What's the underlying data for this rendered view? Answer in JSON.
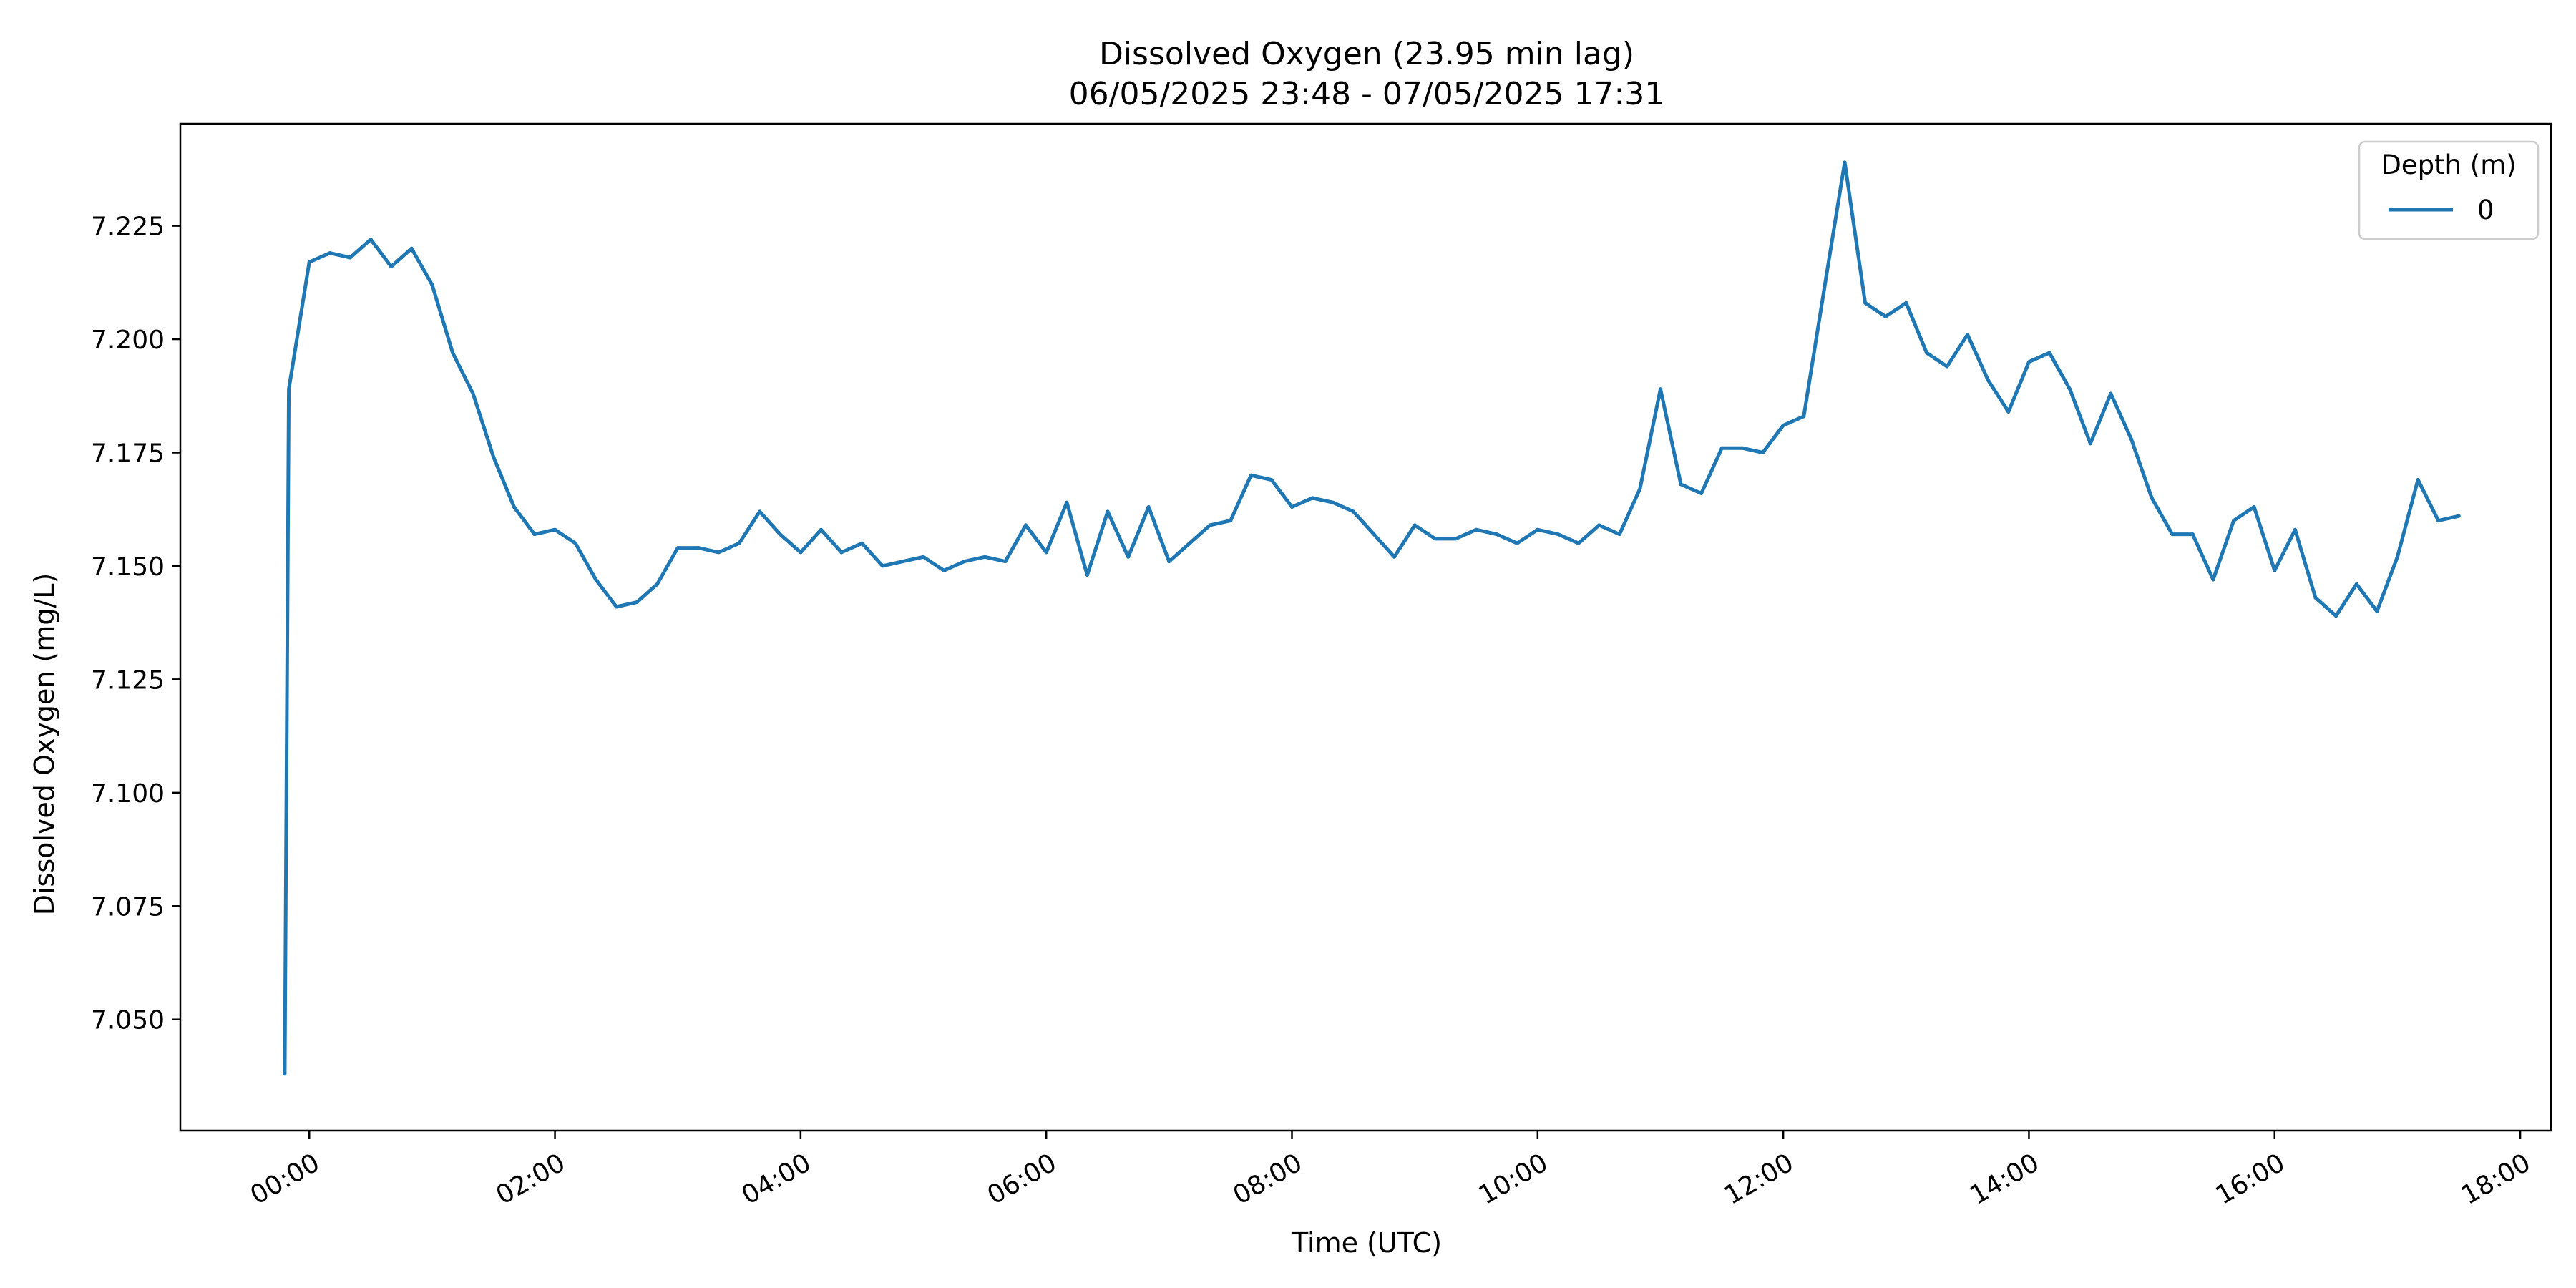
{
  "chart_data": {
    "type": "line",
    "title": "Dissolved Oxygen (23.95 min lag)",
    "subtitle": "06/05/2025 23:48 - 07/05/2025 17:31",
    "xlabel": "Time (UTC)",
    "ylabel": "Dissolved Oxygen (mg/L)",
    "x_unit": "hours from 00:00 UTC",
    "xlim": [
      -1.05,
      18.25
    ],
    "ylim": [
      7.0255,
      7.2475
    ],
    "x_ticks": [
      "00:00",
      "02:00",
      "04:00",
      "06:00",
      "08:00",
      "10:00",
      "12:00",
      "14:00",
      "16:00",
      "18:00"
    ],
    "y_ticks": [
      "7.050",
      "7.075",
      "7.100",
      "7.125",
      "7.150",
      "7.175",
      "7.200",
      "7.225"
    ],
    "grid": false,
    "legend": {
      "title": "Depth (m)",
      "position": "top-right"
    },
    "series": [
      {
        "name": "0",
        "color": "#1f77b4",
        "x": [
          -0.2,
          -0.167,
          0.0,
          0.167,
          0.333,
          0.5,
          0.667,
          0.833,
          1.0,
          1.167,
          1.333,
          1.5,
          1.667,
          1.833,
          2.0,
          2.167,
          2.333,
          2.5,
          2.667,
          2.833,
          3.0,
          3.167,
          3.333,
          3.5,
          3.667,
          3.833,
          4.0,
          4.167,
          4.333,
          4.5,
          4.667,
          4.833,
          5.0,
          5.167,
          5.333,
          5.5,
          5.667,
          5.833,
          6.0,
          6.167,
          6.333,
          6.5,
          6.667,
          6.833,
          7.0,
          7.167,
          7.333,
          7.5,
          7.667,
          7.833,
          8.0,
          8.167,
          8.333,
          8.5,
          8.667,
          8.833,
          9.0,
          9.167,
          9.333,
          9.5,
          9.667,
          9.833,
          10.0,
          10.167,
          10.333,
          10.5,
          10.667,
          10.833,
          11.0,
          11.167,
          11.333,
          11.5,
          11.667,
          11.833,
          12.0,
          12.167,
          12.333,
          12.5,
          12.667,
          12.833,
          13.0,
          13.167,
          13.333,
          13.5,
          13.667,
          13.833,
          14.0,
          14.167,
          14.333,
          14.5,
          14.667,
          14.833,
          15.0,
          15.167,
          15.333,
          15.5,
          15.667,
          15.833,
          16.0,
          16.167,
          16.333,
          16.5,
          16.667,
          16.833,
          17.0,
          17.167,
          17.333,
          17.5
        ],
        "values": [
          7.038,
          7.189,
          7.217,
          7.219,
          7.218,
          7.222,
          7.216,
          7.22,
          7.212,
          7.197,
          7.188,
          7.174,
          7.163,
          7.157,
          7.158,
          7.155,
          7.147,
          7.141,
          7.142,
          7.146,
          7.154,
          7.154,
          7.153,
          7.155,
          7.162,
          7.157,
          7.153,
          7.158,
          7.153,
          7.155,
          7.15,
          7.151,
          7.152,
          7.149,
          7.151,
          7.152,
          7.151,
          7.159,
          7.153,
          7.164,
          7.148,
          7.162,
          7.152,
          7.163,
          7.151,
          7.155,
          7.159,
          7.16,
          7.17,
          7.169,
          7.163,
          7.165,
          7.164,
          7.162,
          7.157,
          7.152,
          7.159,
          7.156,
          7.156,
          7.158,
          7.157,
          7.155,
          7.158,
          7.157,
          7.155,
          7.159,
          7.157,
          7.167,
          7.189,
          7.168,
          7.166,
          7.176,
          7.176,
          7.175,
          7.181,
          7.183,
          7.211,
          7.239,
          7.208,
          7.205,
          7.208,
          7.197,
          7.194,
          7.201,
          7.191,
          7.184,
          7.195,
          7.197,
          7.189,
          7.177,
          7.188,
          7.178,
          7.165,
          7.157,
          7.157,
          7.147,
          7.16,
          7.163,
          7.149,
          7.158,
          7.143,
          7.139,
          7.146,
          7.14,
          7.152,
          7.169,
          7.16,
          7.161
        ]
      }
    ]
  }
}
